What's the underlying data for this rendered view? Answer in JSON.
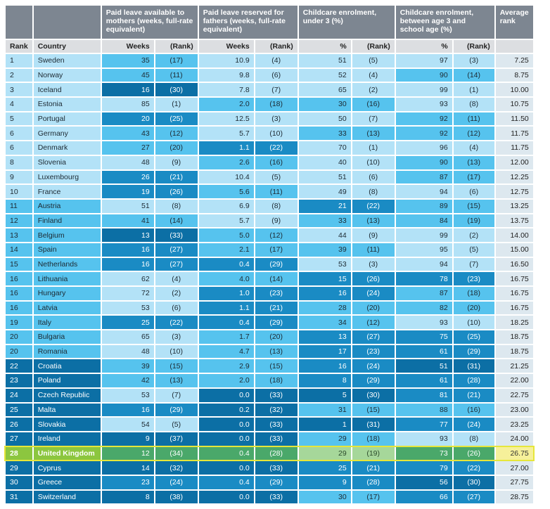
{
  "chart_data": {
    "type": "table",
    "headers": {
      "group": [
        "",
        "",
        "Paid leave available to mothers (weeks, full-rate equivalent)",
        "Paid leave reserved for fathers (weeks, full-rate equivalent)",
        "Childcare enrolment, under 3 (%)",
        "Childcare enrolment, between age 3 and school age (%)",
        "Average rank"
      ],
      "sub": [
        "Rank",
        "Country",
        "Weeks",
        "(Rank)",
        "Weeks",
        "(Rank)",
        "%",
        "(Rank)",
        "%",
        "(Rank)",
        ""
      ]
    },
    "rows": [
      {
        "rank": "1",
        "country": "Sweden",
        "mw": "35",
        "mr": "(17)",
        "fw": "10.9",
        "fr": "(4)",
        "cu": "51",
        "cur": "(5)",
        "ca": "97",
        "car": "(3)",
        "avg": "7.25"
      },
      {
        "rank": "2",
        "country": "Norway",
        "mw": "45",
        "mr": "(11)",
        "fw": "9.8",
        "fr": "(6)",
        "cu": "52",
        "cur": "(4)",
        "ca": "90",
        "car": "(14)",
        "avg": "8.75"
      },
      {
        "rank": "3",
        "country": "Iceland",
        "mw": "16",
        "mr": "(30)",
        "fw": "7.8",
        "fr": "(7)",
        "cu": "65",
        "cur": "(2)",
        "ca": "99",
        "car": "(1)",
        "avg": "10.00"
      },
      {
        "rank": "4",
        "country": "Estonia",
        "mw": "85",
        "mr": "(1)",
        "fw": "2.0",
        "fr": "(18)",
        "cu": "30",
        "cur": "(16)",
        "ca": "93",
        "car": "(8)",
        "avg": "10.75"
      },
      {
        "rank": "5",
        "country": "Portugal",
        "mw": "20",
        "mr": "(25)",
        "fw": "12.5",
        "fr": "(3)",
        "cu": "50",
        "cur": "(7)",
        "ca": "92",
        "car": "(11)",
        "avg": "11.50"
      },
      {
        "rank": "6",
        "country": "Germany",
        "mw": "43",
        "mr": "(12)",
        "fw": "5.7",
        "fr": "(10)",
        "cu": "33",
        "cur": "(13)",
        "ca": "92",
        "car": "(12)",
        "avg": "11.75"
      },
      {
        "rank": "6",
        "country": "Denmark",
        "mw": "27",
        "mr": "(20)",
        "fw": "1.1",
        "fr": "(22)",
        "cu": "70",
        "cur": "(1)",
        "ca": "96",
        "car": "(4)",
        "avg": "11.75"
      },
      {
        "rank": "8",
        "country": "Slovenia",
        "mw": "48",
        "mr": "(9)",
        "fw": "2.6",
        "fr": "(16)",
        "cu": "40",
        "cur": "(10)",
        "ca": "90",
        "car": "(13)",
        "avg": "12.00"
      },
      {
        "rank": "9",
        "country": "Luxembourg",
        "mw": "26",
        "mr": "(21)",
        "fw": "10.4",
        "fr": "(5)",
        "cu": "51",
        "cur": "(6)",
        "ca": "87",
        "car": "(17)",
        "avg": "12.25"
      },
      {
        "rank": "10",
        "country": "France",
        "mw": "19",
        "mr": "(26)",
        "fw": "5.6",
        "fr": "(11)",
        "cu": "49",
        "cur": "(8)",
        "ca": "94",
        "car": "(6)",
        "avg": "12.75"
      },
      {
        "rank": "11",
        "country": "Austria",
        "mw": "51",
        "mr": "(8)",
        "fw": "6.9",
        "fr": "(8)",
        "cu": "21",
        "cur": "(22)",
        "ca": "89",
        "car": "(15)",
        "avg": "13.25"
      },
      {
        "rank": "12",
        "country": "Finland",
        "mw": "41",
        "mr": "(14)",
        "fw": "5.7",
        "fr": "(9)",
        "cu": "33",
        "cur": "(13)",
        "ca": "84",
        "car": "(19)",
        "avg": "13.75"
      },
      {
        "rank": "13",
        "country": "Belgium",
        "mw": "13",
        "mr": "(33)",
        "fw": "5.0",
        "fr": "(12)",
        "cu": "44",
        "cur": "(9)",
        "ca": "99",
        "car": "(2)",
        "avg": "14.00"
      },
      {
        "rank": "14",
        "country": "Spain",
        "mw": "16",
        "mr": "(27)",
        "fw": "2.1",
        "fr": "(17)",
        "cu": "39",
        "cur": "(11)",
        "ca": "95",
        "car": "(5)",
        "avg": "15.00"
      },
      {
        "rank": "15",
        "country": "Netherlands",
        "mw": "16",
        "mr": "(27)",
        "fw": "0.4",
        "fr": "(29)",
        "cu": "53",
        "cur": "(3)",
        "ca": "94",
        "car": "(7)",
        "avg": "16.50"
      },
      {
        "rank": "16",
        "country": "Lithuania",
        "mw": "62",
        "mr": "(4)",
        "fw": "4.0",
        "fr": "(14)",
        "cu": "15",
        "cur": "(26)",
        "ca": "78",
        "car": "(23)",
        "avg": "16.75"
      },
      {
        "rank": "16",
        "country": "Hungary",
        "mw": "72",
        "mr": "(2)",
        "fw": "1.0",
        "fr": "(23)",
        "cu": "16",
        "cur": "(24)",
        "ca": "87",
        "car": "(18)",
        "avg": "16.75"
      },
      {
        "rank": "16",
        "country": "Latvia",
        "mw": "53",
        "mr": "(6)",
        "fw": "1.1",
        "fr": "(21)",
        "cu": "28",
        "cur": "(20)",
        "ca": "82",
        "car": "(20)",
        "avg": "16.75"
      },
      {
        "rank": "19",
        "country": "Italy",
        "mw": "25",
        "mr": "(22)",
        "fw": "0.4",
        "fr": "(29)",
        "cu": "34",
        "cur": "(12)",
        "ca": "93",
        "car": "(10)",
        "avg": "18.25"
      },
      {
        "rank": "20",
        "country": "Bulgaria",
        "mw": "65",
        "mr": "(3)",
        "fw": "1.7",
        "fr": "(20)",
        "cu": "13",
        "cur": "(27)",
        "ca": "75",
        "car": "(25)",
        "avg": "18.75"
      },
      {
        "rank": "20",
        "country": "Romania",
        "mw": "48",
        "mr": "(10)",
        "fw": "4.7",
        "fr": "(13)",
        "cu": "17",
        "cur": "(23)",
        "ca": "61",
        "car": "(29)",
        "avg": "18.75"
      },
      {
        "rank": "22",
        "country": "Croatia",
        "mw": "39",
        "mr": "(15)",
        "fw": "2.9",
        "fr": "(15)",
        "cu": "16",
        "cur": "(24)",
        "ca": "51",
        "car": "(31)",
        "avg": "21.25"
      },
      {
        "rank": "23",
        "country": "Poland",
        "mw": "42",
        "mr": "(13)",
        "fw": "2.0",
        "fr": "(18)",
        "cu": "8",
        "cur": "(29)",
        "ca": "61",
        "car": "(28)",
        "avg": "22.00"
      },
      {
        "rank": "24",
        "country": "Czech Republic",
        "mw": "53",
        "mr": "(7)",
        "fw": "0.0",
        "fr": "(33)",
        "cu": "5",
        "cur": "(30)",
        "ca": "81",
        "car": "(21)",
        "avg": "22.75"
      },
      {
        "rank": "25",
        "country": "Malta",
        "mw": "16",
        "mr": "(29)",
        "fw": "0.2",
        "fr": "(32)",
        "cu": "31",
        "cur": "(15)",
        "ca": "88",
        "car": "(16)",
        "avg": "23.00"
      },
      {
        "rank": "26",
        "country": "Slovakia",
        "mw": "54",
        "mr": "(5)",
        "fw": "0.0",
        "fr": "(33)",
        "cu": "1",
        "cur": "(31)",
        "ca": "77",
        "car": "(24)",
        "avg": "23.25"
      },
      {
        "rank": "27",
        "country": "Ireland",
        "mw": "9",
        "mr": "(37)",
        "fw": "0.0",
        "fr": "(33)",
        "cu": "29",
        "cur": "(18)",
        "ca": "93",
        "car": "(8)",
        "avg": "24.00"
      },
      {
        "rank": "28",
        "country": "United Kingdom",
        "mw": "12",
        "mr": "(34)",
        "fw": "0.4",
        "fr": "(28)",
        "cu": "29",
        "cur": "(19)",
        "ca": "73",
        "car": "(26)",
        "avg": "26.75",
        "highlight": true
      },
      {
        "rank": "29",
        "country": "Cyprus",
        "mw": "14",
        "mr": "(32)",
        "fw": "0.0",
        "fr": "(33)",
        "cu": "25",
        "cur": "(21)",
        "ca": "79",
        "car": "(22)",
        "avg": "27.00"
      },
      {
        "rank": "30",
        "country": "Greece",
        "mw": "23",
        "mr": "(24)",
        "fw": "0.4",
        "fr": "(29)",
        "cu": "9",
        "cur": "(28)",
        "ca": "56",
        "car": "(30)",
        "avg": "27.75"
      },
      {
        "rank": "31",
        "country": "Switzerland",
        "mw": "8",
        "mr": "(38)",
        "fw": "0.0",
        "fr": "(33)",
        "cu": "30",
        "cur": "(17)",
        "ca": "66",
        "car": "(27)",
        "avg": "28.75"
      }
    ]
  }
}
